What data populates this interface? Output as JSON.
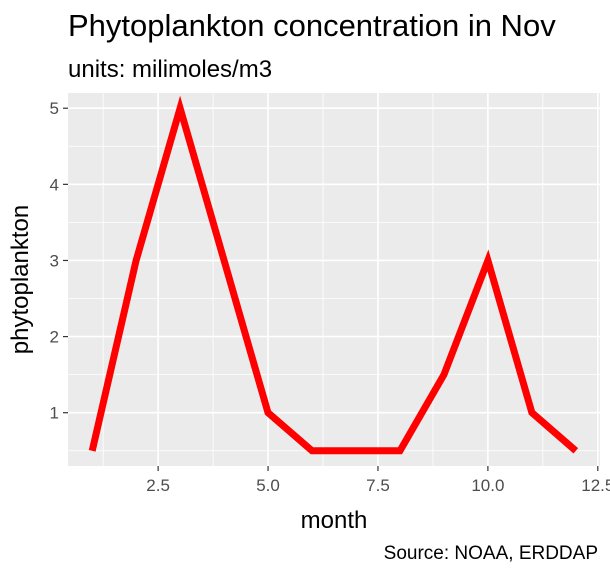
{
  "chart_data": {
    "type": "line",
    "title": "Phytoplankton concentration in Nov",
    "subtitle": "units: milimoles/m3",
    "caption": "Source: NOAA, ERDDAP",
    "xlabel": "month",
    "ylabel": "phytoplankton",
    "xlim": [
      0.45,
      12.55
    ],
    "ylim": [
      0.3,
      5.2
    ],
    "x_ticks": [
      2.5,
      5.0,
      7.5,
      10.0,
      12.5
    ],
    "x_tick_labels": [
      "2.5",
      "5.0",
      "7.5",
      "10.0",
      "12.5"
    ],
    "y_ticks": [
      1,
      2,
      3,
      4,
      5
    ],
    "y_tick_labels": [
      "1",
      "2",
      "3",
      "4",
      "5"
    ],
    "grid": true,
    "series": [
      {
        "x": [
          1,
          2,
          3,
          4,
          5,
          6,
          7,
          8,
          9,
          10,
          11,
          12
        ],
        "y": [
          0.5,
          3.0,
          5.0,
          3.0,
          1.0,
          0.5,
          0.5,
          0.5,
          1.5,
          3.0,
          1.0,
          0.5
        ],
        "color": "#ff0000"
      }
    ],
    "panel_color": "#ebebeb",
    "grid_color": "#ffffff"
  }
}
